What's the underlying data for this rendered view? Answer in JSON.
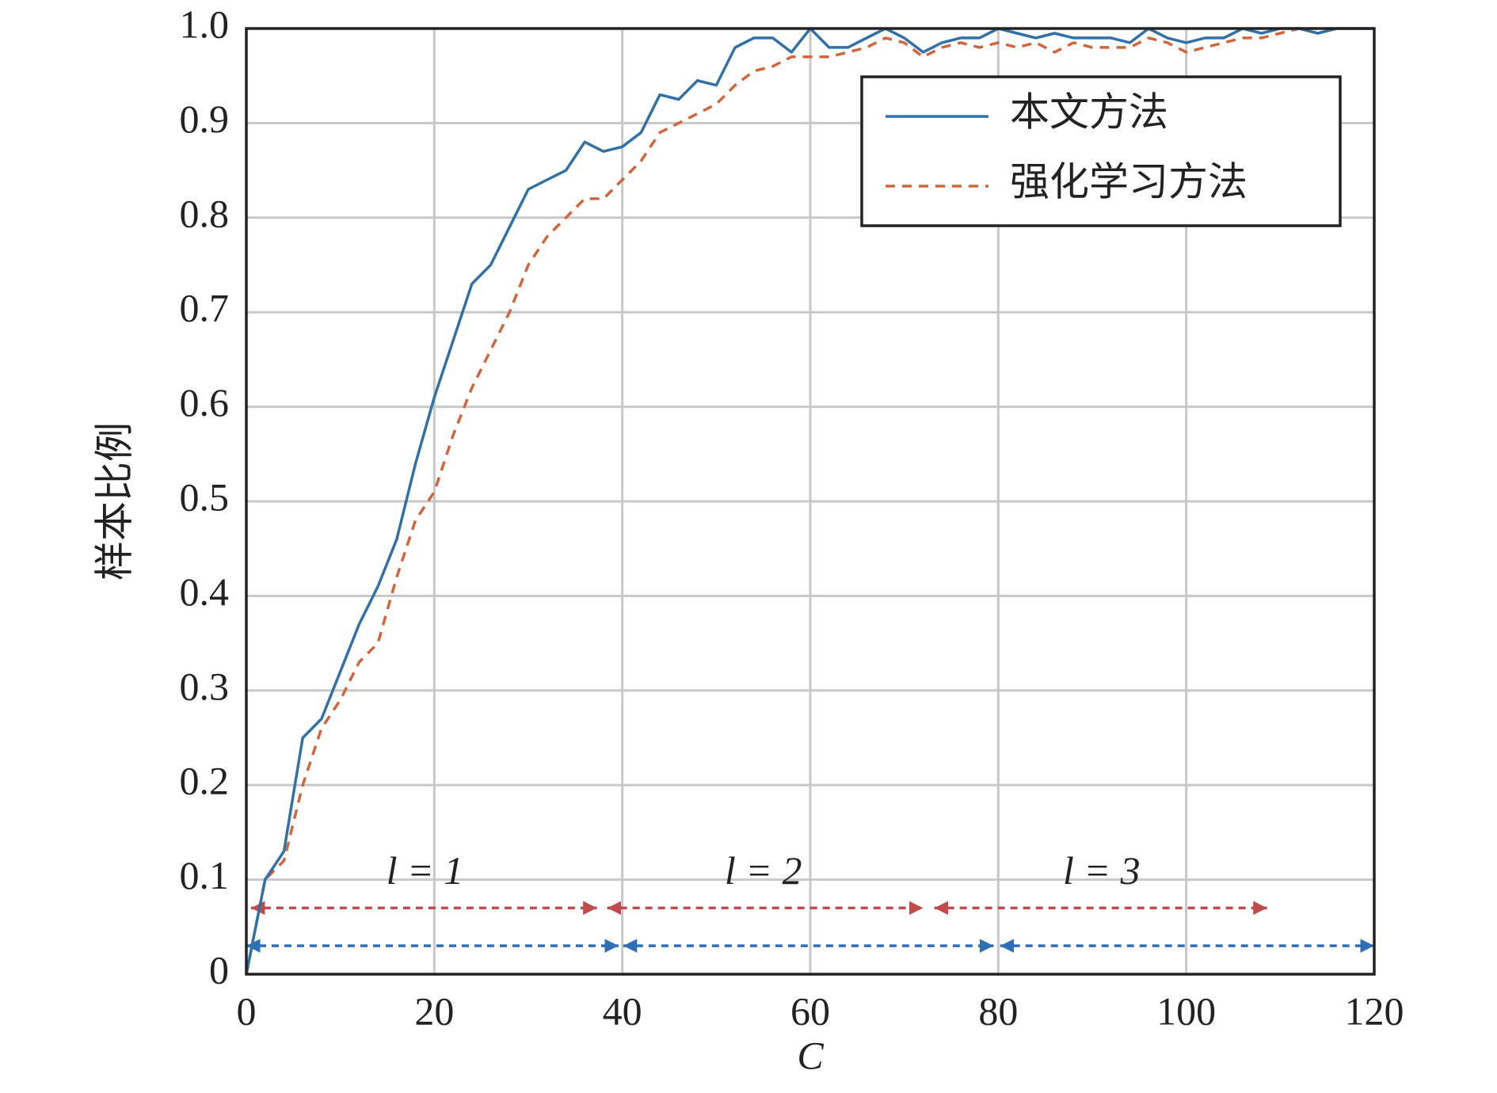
{
  "chart_data": {
    "type": "line",
    "xlabel": "C",
    "ylabel": "样本比例",
    "xlim": [
      0,
      120
    ],
    "ylim": [
      0,
      1
    ],
    "xticks": [
      0,
      20,
      40,
      60,
      80,
      100,
      120
    ],
    "yticks": [
      0,
      0.1,
      0.2,
      0.3,
      0.4,
      0.5,
      0.6,
      0.7,
      0.8,
      0.9,
      {
        "value": 1,
        "label": "1.0"
      }
    ],
    "grid": true,
    "legend": "upper right",
    "x": [
      0,
      2,
      4,
      6,
      8,
      10,
      12,
      14,
      16,
      18,
      20,
      22,
      24,
      26,
      28,
      30,
      32,
      34,
      36,
      38,
      40,
      42,
      44,
      46,
      48,
      50,
      52,
      54,
      56,
      58,
      60,
      62,
      64,
      66,
      68,
      70,
      72,
      74,
      76,
      78,
      80,
      82,
      84,
      86,
      88,
      90,
      92,
      94,
      96,
      98,
      100,
      102,
      104,
      106,
      108,
      110,
      112,
      114,
      116,
      118,
      120
    ],
    "series": [
      {
        "name": "本文方法",
        "color": "#3171a6",
        "dash": false,
        "values": [
          0,
          0.1,
          0.13,
          0.25,
          0.27,
          0.32,
          0.37,
          0.41,
          0.46,
          0.54,
          0.61,
          0.67,
          0.73,
          0.75,
          0.79,
          0.83,
          0.84,
          0.85,
          0.88,
          0.87,
          0.875,
          0.89,
          0.93,
          0.925,
          0.945,
          0.94,
          0.98,
          0.99,
          0.99,
          0.975,
          1.0,
          0.98,
          0.98,
          0.99,
          1.0,
          0.99,
          0.975,
          0.985,
          0.99,
          0.99,
          1.0,
          0.995,
          0.99,
          0.995,
          0.99,
          0.99,
          0.99,
          0.985,
          1.0,
          0.99,
          0.985,
          0.99,
          0.99,
          1.0,
          0.995,
          1.0,
          1.0,
          0.995,
          1.0,
          1.0,
          1.0
        ]
      },
      {
        "name": "强化学习方法",
        "color": "#d0663c",
        "dash": true,
        "values": [
          0,
          0.1,
          0.12,
          0.2,
          0.26,
          0.29,
          0.33,
          0.35,
          0.42,
          0.48,
          0.51,
          0.57,
          0.62,
          0.66,
          0.7,
          0.75,
          0.78,
          0.8,
          0.82,
          0.82,
          0.84,
          0.86,
          0.89,
          0.9,
          0.91,
          0.92,
          0.94,
          0.955,
          0.96,
          0.97,
          0.97,
          0.97,
          0.975,
          0.98,
          0.99,
          0.985,
          0.97,
          0.98,
          0.985,
          0.98,
          0.985,
          0.98,
          0.985,
          0.975,
          0.985,
          0.98,
          0.98,
          0.98,
          0.99,
          0.985,
          0.975,
          0.98,
          0.985,
          0.99,
          0.99,
          0.995,
          1.0,
          1.0,
          1.0,
          1.0,
          1.0
        ]
      }
    ],
    "arrows": [
      {
        "color": "#bf4b4b",
        "y": 0.07,
        "spans": [
          [
            0.5,
            37.3
          ],
          [
            38.4,
            72
          ],
          [
            73.2,
            108.6
          ]
        ]
      },
      {
        "color": "#2f6fb5",
        "y": 0.03,
        "spans": [
          [
            0,
            39.6
          ],
          [
            40.1,
            79.5
          ],
          [
            80.2,
            120
          ]
        ]
      }
    ],
    "labels": [
      {
        "text": "l = 1",
        "x": 19,
        "y": 0.105
      },
      {
        "text": "l = 2",
        "x": 55,
        "y": 0.105
      },
      {
        "text": "l = 3",
        "x": 91,
        "y": 0.105
      }
    ]
  }
}
